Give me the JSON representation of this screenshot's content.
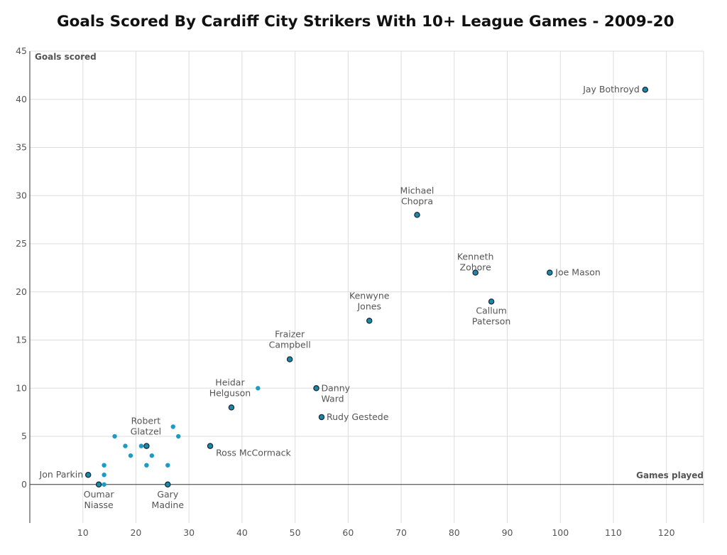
{
  "chart_data": {
    "type": "scatter",
    "title": "Goals Scored By Cardiff City Strikers With 10+ League Games - 2009-20",
    "xlabel": "Games played",
    "ylabel": "Goals scored",
    "xlim": [
      0,
      127
    ],
    "ylim": [
      -4,
      45
    ],
    "x_ticks": [
      10,
      20,
      30,
      40,
      50,
      60,
      70,
      80,
      90,
      100,
      110,
      120
    ],
    "y_ticks": [
      0,
      5,
      10,
      15,
      20,
      25,
      30,
      35,
      40,
      45
    ],
    "grid": true,
    "colors": {
      "labeled_fill": "#1a8aa8",
      "labeled_stroke": "#1a2a3a",
      "unlabeled_fill": "#1c9bc4",
      "grid": "#dddddd",
      "zero_line": "#333333"
    },
    "points": [
      {
        "x": 116,
        "y": 41,
        "label": "Jay Bothroyd",
        "labeled": true
      },
      {
        "x": 73,
        "y": 28,
        "label": "Michael\nChopra",
        "labeled": true
      },
      {
        "x": 84,
        "y": 22,
        "label": "Kenneth\nZohore",
        "labeled": true
      },
      {
        "x": 98,
        "y": 22,
        "label": "Joe Mason",
        "labeled": true
      },
      {
        "x": 87,
        "y": 19,
        "label": "Callum\nPaterson",
        "labeled": true
      },
      {
        "x": 64,
        "y": 17,
        "label": "Kenwyne\nJones",
        "labeled": true
      },
      {
        "x": 49,
        "y": 13,
        "label": "Fraizer\nCampbell",
        "labeled": true
      },
      {
        "x": 54,
        "y": 10,
        "label": "Danny\nWard",
        "labeled": true
      },
      {
        "x": 38,
        "y": 8,
        "label": "Heidar\nHelguson",
        "labeled": true
      },
      {
        "x": 55,
        "y": 7,
        "label": "Rudy Gestede",
        "labeled": true
      },
      {
        "x": 22,
        "y": 4,
        "label": "Robert\nGlatzel",
        "labeled": true
      },
      {
        "x": 34,
        "y": 4,
        "label": "Ross McCormack",
        "labeled": true
      },
      {
        "x": 11,
        "y": 1,
        "label": "Jon Parkin",
        "labeled": true
      },
      {
        "x": 13,
        "y": 0,
        "label": "Oumar\nNiasse",
        "labeled": true
      },
      {
        "x": 26,
        "y": 0,
        "label": "Gary\nMadine",
        "labeled": true
      },
      {
        "x": 43,
        "y": 10,
        "labeled": false
      },
      {
        "x": 27,
        "y": 6,
        "labeled": false
      },
      {
        "x": 16,
        "y": 5,
        "labeled": false
      },
      {
        "x": 28,
        "y": 5,
        "labeled": false
      },
      {
        "x": 18,
        "y": 4,
        "labeled": false
      },
      {
        "x": 21,
        "y": 4,
        "labeled": false
      },
      {
        "x": 19,
        "y": 3,
        "labeled": false
      },
      {
        "x": 23,
        "y": 3,
        "labeled": false
      },
      {
        "x": 14,
        "y": 2,
        "labeled": false
      },
      {
        "x": 22,
        "y": 2,
        "labeled": false
      },
      {
        "x": 26,
        "y": 2,
        "labeled": false
      },
      {
        "x": 14,
        "y": 1,
        "labeled": false
      },
      {
        "x": 14,
        "y": 0,
        "labeled": false
      }
    ]
  }
}
